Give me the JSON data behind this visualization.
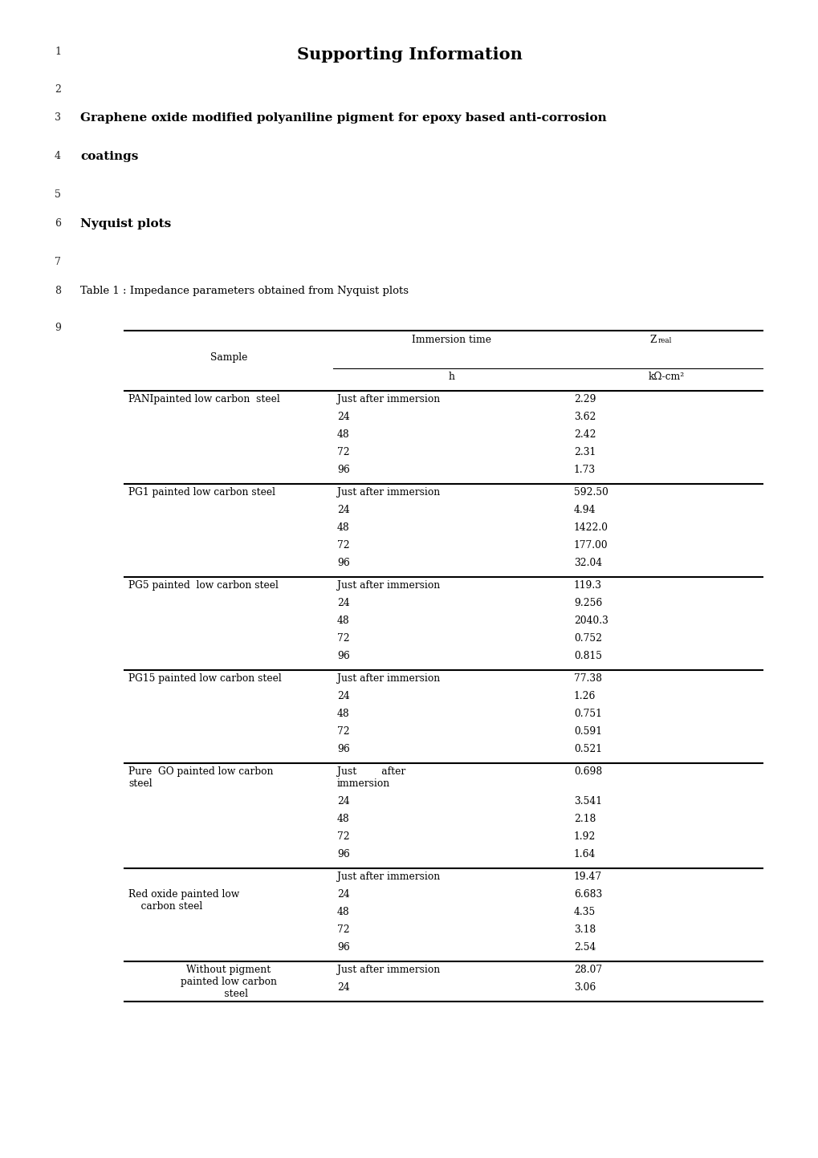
{
  "title": "Supporting Information",
  "line1_num": "1",
  "line2_num": "2",
  "line3_num": "3",
  "line3_text": "Graphene oxide modified polyaniline pigment for epoxy based anti-corrosion",
  "line4_num": "4",
  "line4_text": "coatings",
  "line5_num": "5",
  "line6_num": "6",
  "line6_text": "Nyquist plots",
  "line7_num": "7",
  "line8_num": "8",
  "line8_text": "Table 1 : Impedance parameters obtained from Nyquist plots",
  "line9_num": "9",
  "table_col1_header": "Sample",
  "table_col2_header": "Immersion time",
  "table_col3_header_main": "Z",
  "table_col3_header_sub_script": "real",
  "table_col2_sub": "h",
  "table_col3_sub": "kΩ-cm²",
  "groups": [
    {
      "sample": "PANIpainted low carbon  steel",
      "sample_lines": 1,
      "sample_align": "left",
      "rows_before": [],
      "rows": [
        {
          "time": "Just after immersion",
          "z": "2.29"
        },
        {
          "time": "24",
          "z": "3.62"
        },
        {
          "time": "48",
          "z": "2.42"
        },
        {
          "time": "72",
          "z": "2.31"
        },
        {
          "time": "96",
          "z": "1.73"
        }
      ],
      "divider": true
    },
    {
      "sample": "PG1 painted low carbon steel",
      "sample_lines": 1,
      "sample_align": "left",
      "rows_before": [],
      "rows": [
        {
          "time": "Just after immersion",
          "z": "592.50"
        },
        {
          "time": "24",
          "z": "4.94"
        },
        {
          "time": "48",
          "z": "1422.0"
        },
        {
          "time": "72",
          "z": "177.00"
        },
        {
          "time": "96",
          "z": "32.04"
        }
      ],
      "divider": true
    },
    {
      "sample": "PG5 painted  low carbon steel",
      "sample_lines": 1,
      "sample_align": "left",
      "rows_before": [],
      "rows": [
        {
          "time": "Just after immersion",
          "z": "119.3"
        },
        {
          "time": "24",
          "z": "9.256"
        },
        {
          "time": "48",
          "z": "2040.3"
        },
        {
          "time": "72",
          "z": "0.752"
        },
        {
          "time": "96",
          "z": "0.815"
        }
      ],
      "divider": true
    },
    {
      "sample": "PG15 painted low carbon steel",
      "sample_lines": 1,
      "sample_align": "left",
      "rows_before": [],
      "rows": [
        {
          "time": "Just after immersion",
          "z": "77.38"
        },
        {
          "time": "24",
          "z": "1.26"
        },
        {
          "time": "48",
          "z": "0.751"
        },
        {
          "time": "72",
          "z": "0.591"
        },
        {
          "time": "96",
          "z": "0.521"
        }
      ],
      "divider": true
    },
    {
      "sample": "Pure  GO painted low carbon\nsteel",
      "sample_lines": 2,
      "sample_align": "left",
      "rows_before": [],
      "rows": [
        {
          "time": "Just        after\nimmersion",
          "z": "0.698"
        },
        {
          "time": "24",
          "z": "3.541"
        },
        {
          "time": "48",
          "z": "2.18"
        },
        {
          "time": "72",
          "z": "1.92"
        },
        {
          "time": "96",
          "z": "1.64"
        }
      ],
      "divider": true
    },
    {
      "sample": "Red oxide painted low\n    carbon steel",
      "sample_lines": 2,
      "sample_align": "left",
      "rows_before": [
        {
          "time": "Just after immersion",
          "z": "19.47"
        }
      ],
      "rows": [
        {
          "time": "24",
          "z": "6.683"
        },
        {
          "time": "48",
          "z": "4.35"
        },
        {
          "time": "72",
          "z": "3.18"
        },
        {
          "time": "96",
          "z": "2.54"
        }
      ],
      "divider": true
    },
    {
      "sample": "Without pigment\npainted low carbon\n     steel",
      "sample_lines": 3,
      "sample_align": "center",
      "rows_before": [],
      "rows": [
        {
          "time": "Just after immersion",
          "z": "28.07"
        },
        {
          "time": "24",
          "z": "3.06"
        }
      ],
      "divider": false
    }
  ]
}
